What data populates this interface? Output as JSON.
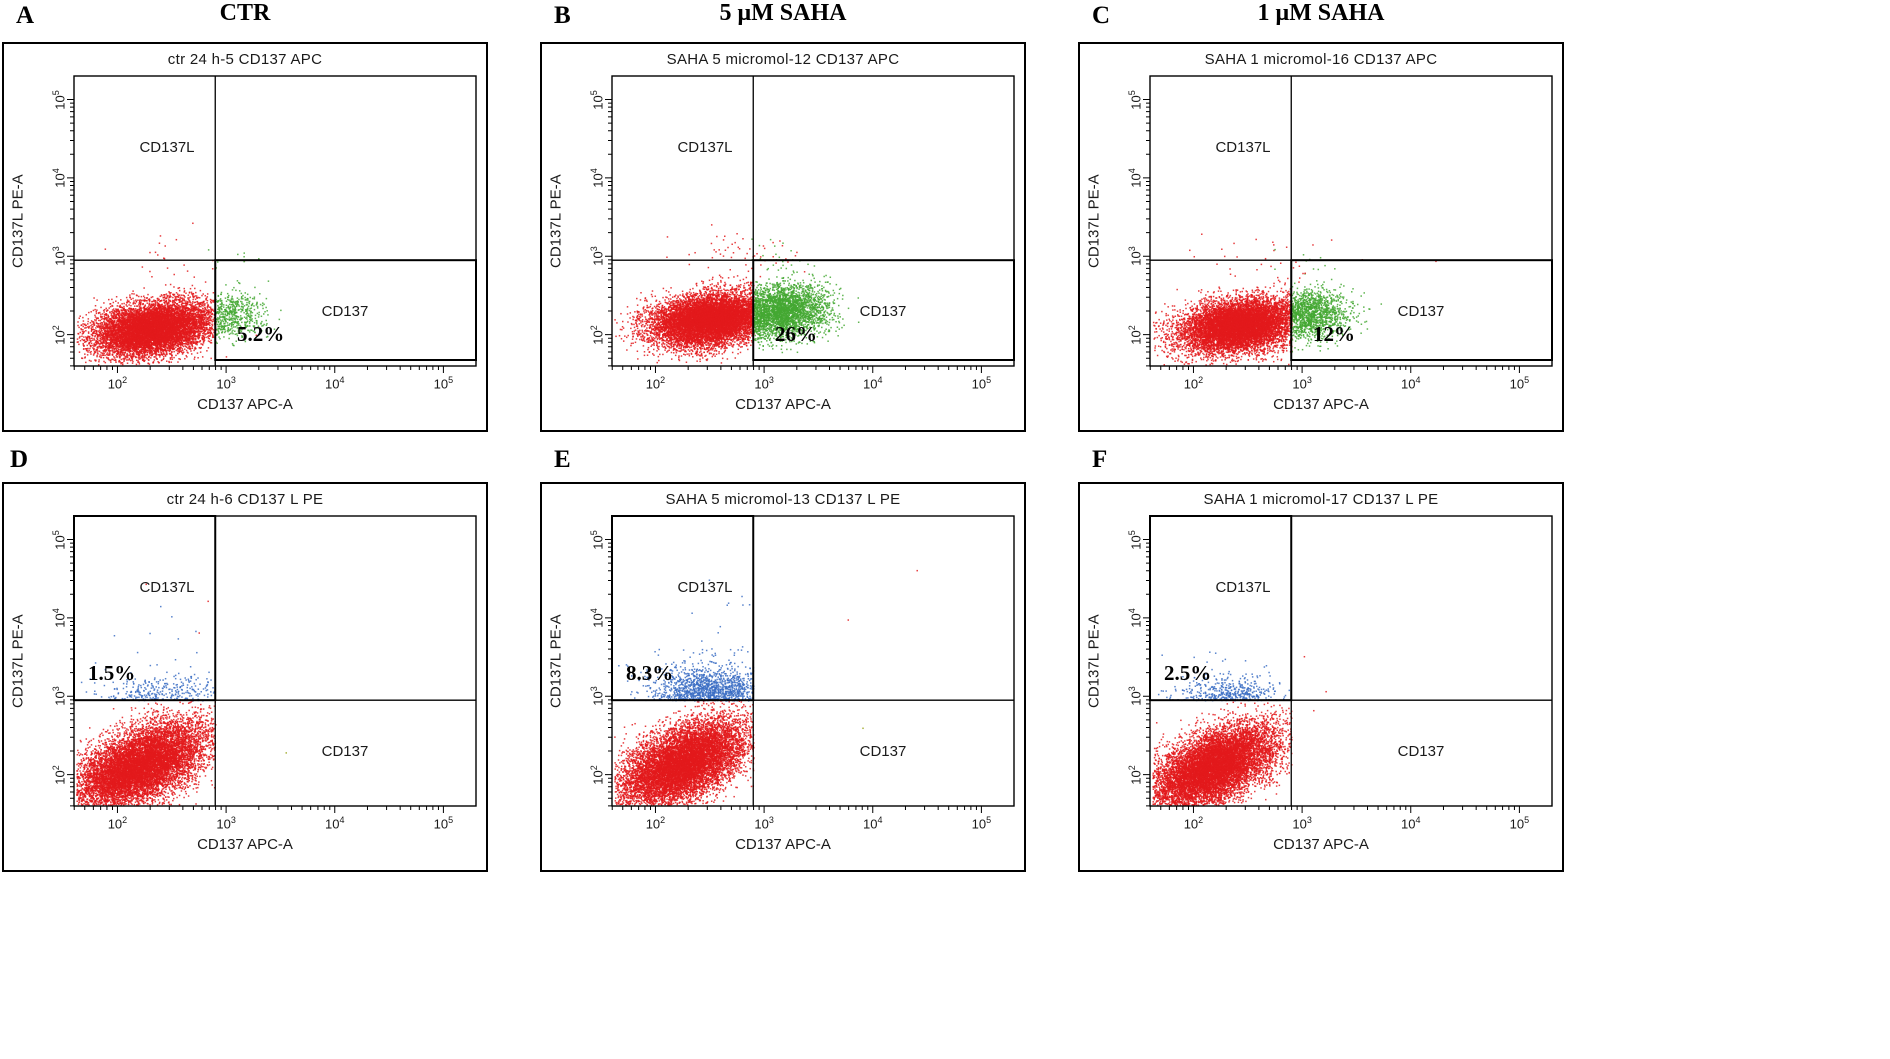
{
  "figure": {
    "row1": [
      {
        "letter": "A",
        "title": "CTR"
      },
      {
        "letter": "B",
        "title": "5 μM SAHA"
      },
      {
        "letter": "C",
        "title": "1  μM SAHA"
      }
    ],
    "row2": [
      {
        "letter": "D"
      },
      {
        "letter": "E"
      },
      {
        "letter": "F"
      }
    ]
  },
  "colors": {
    "red": "#e31a1c",
    "green": "#44a832",
    "blue": "#3c6fc4",
    "olive": "#9aa41c",
    "frame": "#000000"
  },
  "chart_data": [
    {
      "id": "A",
      "type": "scatter",
      "title": "ctr 24 h-5 CD137 APC",
      "xlabel": "CD137 APC-A",
      "ylabel": "CD137L PE-A",
      "x_scale": "log10",
      "y_scale": "log10",
      "x_range_log10": [
        1.6,
        5.3
      ],
      "y_range_log10": [
        1.6,
        5.3
      ],
      "ticks_log10": [
        2,
        3,
        4,
        5
      ],
      "gate_x_log10": 2.9,
      "gate_y_log10": 2.95,
      "gate_box": "lower-right",
      "quadrant_labels": {
        "upper_left": "CD137L",
        "lower_right": "CD137"
      },
      "percent": "5.2%",
      "populations": [
        {
          "label": "CD137-negative",
          "color": "red",
          "n": 9000,
          "cx": 2.32,
          "cy": 2.08,
          "sx": 0.27,
          "sy": 0.17,
          "rho": 0.25,
          "clip": "lower-left"
        },
        {
          "label": "CD137-positive",
          "color": "green",
          "n": 520,
          "cx": 3.0,
          "cy": 2.26,
          "sx": 0.17,
          "sy": 0.15,
          "rho": 0.1,
          "clip": "lower-right"
        },
        {
          "label": "stray-red-above-gate",
          "color": "red",
          "n": 22,
          "cx": 2.55,
          "cy": 3.0,
          "sx": 0.35,
          "sy": 0.14,
          "rho": 0,
          "clip": "none"
        },
        {
          "label": "stray-green-above-gate",
          "color": "green",
          "n": 8,
          "cx": 3.05,
          "cy": 2.98,
          "sx": 0.18,
          "sy": 0.1,
          "rho": 0,
          "clip": "none"
        },
        {
          "label": "stray-far",
          "color": "red",
          "n": 2,
          "cx": 3.6,
          "cy": 2.4,
          "sx": 0.5,
          "sy": 0.4,
          "rho": 0,
          "clip": "none"
        }
      ]
    },
    {
      "id": "B",
      "type": "scatter",
      "title": "SAHA 5 micromol-12 CD137 APC",
      "xlabel": "CD137 APC-A",
      "ylabel": "CD137L PE-A",
      "x_scale": "log10",
      "y_scale": "log10",
      "x_range_log10": [
        1.6,
        5.3
      ],
      "y_range_log10": [
        1.6,
        5.3
      ],
      "ticks_log10": [
        2,
        3,
        4,
        5
      ],
      "gate_x_log10": 2.9,
      "gate_y_log10": 2.95,
      "gate_box": "lower-right",
      "quadrant_labels": {
        "upper_left": "CD137L",
        "lower_right": "CD137"
      },
      "percent": "26%",
      "populations": [
        {
          "label": "CD137-negative",
          "color": "red",
          "n": 9000,
          "cx": 2.5,
          "cy": 2.2,
          "sx": 0.27,
          "sy": 0.17,
          "rho": 0.25,
          "clip": "lower-left"
        },
        {
          "label": "CD137-positive",
          "color": "green",
          "n": 3000,
          "cx": 3.12,
          "cy": 2.3,
          "sx": 0.23,
          "sy": 0.17,
          "rho": 0.15,
          "clip": "lower-right"
        },
        {
          "label": "stray-red-above-gate",
          "color": "red",
          "n": 55,
          "cx": 2.75,
          "cy": 3.02,
          "sx": 0.32,
          "sy": 0.15,
          "rho": 0,
          "clip": "none"
        },
        {
          "label": "stray-green-above-gate",
          "color": "green",
          "n": 25,
          "cx": 3.12,
          "cy": 3.0,
          "sx": 0.2,
          "sy": 0.12,
          "rho": 0,
          "clip": "none"
        }
      ]
    },
    {
      "id": "C",
      "type": "scatter",
      "title": "SAHA 1 micromol-16 CD137 APC",
      "xlabel": "CD137 APC-A",
      "ylabel": "CD137L PE-A",
      "x_scale": "log10",
      "y_scale": "log10",
      "x_range_log10": [
        1.6,
        5.3
      ],
      "y_range_log10": [
        1.6,
        5.3
      ],
      "ticks_log10": [
        2,
        3,
        4,
        5
      ],
      "gate_x_log10": 2.9,
      "gate_y_log10": 2.95,
      "gate_box": "lower-right",
      "quadrant_labels": {
        "upper_left": "CD137L",
        "lower_right": "CD137"
      },
      "percent": "12%",
      "populations": [
        {
          "label": "CD137-negative",
          "color": "red",
          "n": 9000,
          "cx": 2.42,
          "cy": 2.12,
          "sx": 0.27,
          "sy": 0.17,
          "rho": 0.25,
          "clip": "lower-left"
        },
        {
          "label": "CD137-positive",
          "color": "green",
          "n": 1300,
          "cx": 3.04,
          "cy": 2.26,
          "sx": 0.19,
          "sy": 0.15,
          "rho": 0.1,
          "clip": "lower-right"
        },
        {
          "label": "stray-red-above-gate",
          "color": "red",
          "n": 30,
          "cx": 2.7,
          "cy": 2.98,
          "sx": 0.33,
          "sy": 0.14,
          "rho": 0,
          "clip": "none"
        },
        {
          "label": "stray-green-above-gate",
          "color": "green",
          "n": 10,
          "cx": 3.05,
          "cy": 2.96,
          "sx": 0.18,
          "sy": 0.1,
          "rho": 0,
          "clip": "none"
        },
        {
          "label": "stray-far",
          "color": "red",
          "n": 3,
          "cx": 4.2,
          "cy": 3.0,
          "sx": 0.5,
          "sy": 0.3,
          "rho": 0,
          "clip": "none"
        }
      ]
    },
    {
      "id": "D",
      "type": "scatter",
      "title": "ctr 24 h-6 CD137 L PE",
      "xlabel": "CD137 APC-A",
      "ylabel": "CD137L PE-A",
      "x_scale": "log10",
      "y_scale": "log10",
      "x_range_log10": [
        1.6,
        5.3
      ],
      "y_range_log10": [
        1.6,
        5.3
      ],
      "ticks_log10": [
        2,
        3,
        4,
        5
      ],
      "gate_x_log10": 2.9,
      "gate_y_log10": 2.95,
      "gate_box": "upper-left",
      "quadrant_labels": {
        "upper_left": "CD137L",
        "lower_right": "CD137"
      },
      "percent": "1.5%",
      "populations": [
        {
          "label": "negative",
          "color": "red",
          "n": 9500,
          "cx": 2.2,
          "cy": 2.12,
          "sx": 0.3,
          "sy": 0.28,
          "rho": 0.55,
          "clip": "lower-left"
        },
        {
          "label": "CD137L-positive",
          "color": "blue",
          "n": 300,
          "cx": 2.42,
          "cy": 3.0,
          "sx": 0.3,
          "sy": 0.14,
          "rho": 0,
          "clip": "upper-left"
        },
        {
          "label": "stray-blue-high",
          "color": "blue",
          "n": 14,
          "cx": 2.6,
          "cy": 3.5,
          "sx": 0.4,
          "sy": 0.35,
          "rho": 0,
          "clip": "upper-left"
        },
        {
          "label": "stray-red-top",
          "color": "red",
          "n": 3,
          "cx": 3.0,
          "cy": 4.4,
          "sx": 0.5,
          "sy": 0.5,
          "rho": 0,
          "clip": "none"
        },
        {
          "label": "stray-olive",
          "color": "olive",
          "n": 1,
          "cx": 3.55,
          "cy": 2.3,
          "sx": 0.01,
          "sy": 0.01,
          "rho": 0,
          "clip": "none"
        }
      ]
    },
    {
      "id": "E",
      "type": "scatter",
      "title": "SAHA 5 micromol-13 CD137 L PE",
      "xlabel": "CD137 APC-A",
      "ylabel": "CD137L PE-A",
      "x_scale": "log10",
      "y_scale": "log10",
      "x_range_log10": [
        1.6,
        5.3
      ],
      "y_range_log10": [
        1.6,
        5.3
      ],
      "ticks_log10": [
        2,
        3,
        4,
        5
      ],
      "gate_x_log10": 2.9,
      "gate_y_log10": 2.95,
      "gate_box": "upper-left",
      "quadrant_labels": {
        "upper_left": "CD137L",
        "lower_right": "CD137"
      },
      "percent": "8.3%",
      "populations": [
        {
          "label": "negative",
          "color": "red",
          "n": 9500,
          "cx": 2.25,
          "cy": 2.15,
          "sx": 0.3,
          "sy": 0.28,
          "rho": 0.55,
          "clip": "lower-left"
        },
        {
          "label": "CD137L-positive",
          "color": "blue",
          "n": 1250,
          "cx": 2.5,
          "cy": 3.02,
          "sx": 0.27,
          "sy": 0.18,
          "rho": 0,
          "clip": "upper-left"
        },
        {
          "label": "stray-blue-high",
          "color": "blue",
          "n": 25,
          "cx": 2.7,
          "cy": 3.6,
          "sx": 0.45,
          "sy": 0.4,
          "rho": 0,
          "clip": "upper-left"
        },
        {
          "label": "stray-olive",
          "color": "olive",
          "n": 1,
          "cx": 3.9,
          "cy": 2.6,
          "sx": 0.01,
          "sy": 0.01,
          "rho": 0,
          "clip": "none"
        },
        {
          "label": "stray-red-top",
          "color": "red",
          "n": 2,
          "cx": 3.4,
          "cy": 4.0,
          "sx": 0.6,
          "sy": 0.6,
          "rho": 0,
          "clip": "none"
        }
      ]
    },
    {
      "id": "F",
      "type": "scatter",
      "title": "SAHA 1 micromol-17 CD137 L PE",
      "xlabel": "CD137 APC-A",
      "ylabel": "CD137L PE-A",
      "x_scale": "log10",
      "y_scale": "log10",
      "x_range_log10": [
        1.6,
        5.3
      ],
      "y_range_log10": [
        1.6,
        5.3
      ],
      "ticks_log10": [
        2,
        3,
        4,
        5
      ],
      "gate_x_log10": 2.9,
      "gate_y_log10": 2.95,
      "gate_box": "upper-left",
      "quadrant_labels": {
        "upper_left": "CD137L",
        "lower_right": "CD137"
      },
      "percent": "2.5%",
      "populations": [
        {
          "label": "negative",
          "color": "red",
          "n": 9500,
          "cx": 2.18,
          "cy": 2.1,
          "sx": 0.29,
          "sy": 0.27,
          "rho": 0.55,
          "clip": "lower-left"
        },
        {
          "label": "CD137L-positive",
          "color": "blue",
          "n": 430,
          "cx": 2.32,
          "cy": 2.98,
          "sx": 0.25,
          "sy": 0.13,
          "rho": 0,
          "clip": "upper-left"
        },
        {
          "label": "stray-blue-high",
          "color": "blue",
          "n": 12,
          "cx": 2.5,
          "cy": 3.4,
          "sx": 0.35,
          "sy": 0.3,
          "rho": 0,
          "clip": "upper-left"
        },
        {
          "label": "stray-red",
          "color": "red",
          "n": 3,
          "cx": 3.2,
          "cy": 3.1,
          "sx": 0.4,
          "sy": 0.4,
          "rho": 0,
          "clip": "none"
        }
      ]
    }
  ]
}
